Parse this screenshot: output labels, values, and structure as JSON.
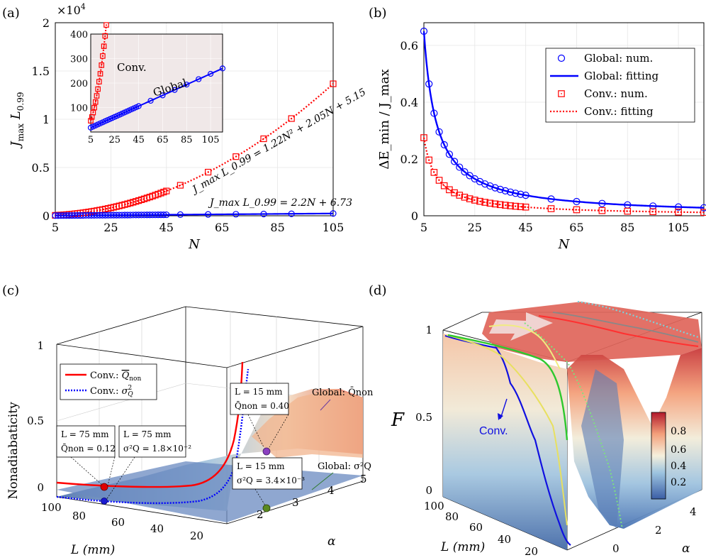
{
  "panels": {
    "a": "(a)",
    "b": "(b)",
    "c": "(c)",
    "d": "(d)"
  },
  "chart_data": [
    {
      "id": "a",
      "type": "scatter",
      "multiplier": "×10",
      "multiplier_exp": "4",
      "xlabel": "N",
      "ylabel_main": "J",
      "ylabel_sub1": "max",
      "ylabel_mid": " L",
      "ylabel_sub2": "0.99",
      "xlim": [
        5,
        105
      ],
      "ylim": [
        0,
        2
      ],
      "xticks": [
        5,
        25,
        45,
        65,
        85,
        105
      ],
      "yticks": [
        0,
        0.5,
        1,
        1.5,
        2
      ],
      "series": [
        {
          "name": "Conv.",
          "color": "#ff0000",
          "marker": "square",
          "fit": "1.22N^2+2.05N+5.15",
          "x": [
            5,
            6,
            7,
            8,
            9,
            10,
            11,
            12,
            13,
            14,
            15,
            16,
            17,
            18,
            19,
            20,
            21,
            22,
            23,
            24,
            25,
            26,
            27,
            28,
            29,
            30,
            31,
            32,
            33,
            34,
            35,
            36,
            37,
            38,
            39,
            40,
            41,
            42,
            43,
            44,
            45,
            50,
            60,
            70,
            80,
            90,
            105
          ]
        },
        {
          "name": "Global",
          "color": "#0000ff",
          "marker": "circle",
          "fit": "2.2N+6.73",
          "x": [
            5,
            6,
            7,
            8,
            9,
            10,
            11,
            12,
            13,
            14,
            15,
            16,
            17,
            18,
            19,
            20,
            21,
            22,
            23,
            24,
            25,
            26,
            27,
            28,
            29,
            30,
            31,
            32,
            33,
            34,
            35,
            36,
            37,
            38,
            39,
            40,
            41,
            42,
            43,
            44,
            45,
            50,
            60,
            70,
            80,
            90,
            105
          ]
        }
      ],
      "fit_label_conv": "J_max L_0.99 = 1.22N² + 2.05N + 5.15",
      "fit_label_global": "J_max L_0.99 = 2.2N + 6.73",
      "inset": {
        "xlim": [
          5,
          115
        ],
        "ylim": [
          0,
          400
        ],
        "xticks": [
          5,
          25,
          45,
          65,
          85,
          105
        ],
        "yticks": [
          100,
          200,
          300,
          400
        ],
        "label_conv": "Conv.",
        "label_global": "Global",
        "background": "#f0e8e8",
        "conv_x": [
          5,
          6,
          7,
          8,
          9,
          10,
          11,
          12,
          13,
          14,
          15,
          16,
          17,
          18
        ],
        "global_x": [
          5,
          7,
          9,
          11,
          13,
          15,
          17,
          19,
          21,
          23,
          25,
          27,
          29,
          31,
          33,
          35,
          37,
          39,
          41,
          43,
          45,
          55,
          65,
          75,
          85,
          95,
          105,
          115
        ]
      }
    },
    {
      "id": "b",
      "type": "scatter",
      "xlabel": "N",
      "ylabel": "ΔE_min / J_max",
      "xlim": [
        5,
        115
      ],
      "ylim": [
        0,
        0.68
      ],
      "xticks": [
        5,
        25,
        45,
        65,
        85,
        105
      ],
      "yticks": [
        0,
        0.2,
        0.4,
        0.6
      ],
      "legend": [
        "Global: num.",
        "Global: fitting",
        "Conv.: num.",
        "Conv.: fitting"
      ],
      "series": [
        {
          "name": "Global: num.",
          "color": "#0000ff",
          "marker": "circle",
          "x": [
            5,
            7,
            9,
            11,
            13,
            15,
            17,
            19,
            21,
            23,
            25,
            27,
            29,
            31,
            33,
            35,
            37,
            39,
            41,
            43,
            45,
            55,
            65,
            75,
            85,
            95,
            105,
            115
          ]
        },
        {
          "name": "Conv.: num.",
          "color": "#ff0000",
          "marker": "square",
          "x": [
            5,
            7,
            9,
            11,
            13,
            15,
            17,
            19,
            21,
            23,
            25,
            27,
            29,
            31,
            33,
            35,
            37,
            39,
            41,
            43,
            45,
            55,
            65,
            75,
            85,
            95,
            105,
            115
          ]
        }
      ]
    },
    {
      "id": "c",
      "type": "surface3d",
      "zlabel": "Nonadiabaticity",
      "xlabel": "L (mm)",
      "ylabel": "α",
      "zticks": [
        "0",
        "0.5",
        "1"
      ],
      "xticks": [
        "100",
        "80",
        "60",
        "40",
        "20"
      ],
      "yticks": [
        "2",
        "3",
        "4",
        "5"
      ],
      "legend": [
        "Conv.: Q̄_non",
        "Conv.: σ²_Q"
      ],
      "legend_1_prefix": "Conv.: ",
      "legend_1_sym": "Q",
      "legend_1_sub": "non",
      "legend_2_prefix": "Conv.: ",
      "legend_2_sym": "σ",
      "legend_2_sup": "2",
      "legend_2_sub": "Q",
      "annotations": {
        "box1_l1": "L = 75 mm",
        "box1_l2": "Q̄non = 0.12",
        "box2_l1": "L = 75 mm",
        "box2_l2": "σ²Q = 1.8×10⁻²",
        "box3_l1": "L = 15 mm",
        "box3_l2": "Q̄non = 0.40",
        "box4_l1": "L = 15 mm",
        "box4_l2": "σ²Q = 3.4×10⁻³",
        "global_q": "Global: Q̄non",
        "global_s": "Global: σ²Q"
      },
      "points": {
        "conv_q": 0.12,
        "conv_s": 0.018,
        "global_q": 0.4,
        "global_s": 0.0034
      }
    },
    {
      "id": "d",
      "type": "surface3d",
      "zlabel": "F",
      "xlabel": "L (mm)",
      "ylabel": "α",
      "zticks": [
        "0",
        "0.5",
        "1"
      ],
      "xticks": [
        "100",
        "80",
        "60",
        "40",
        "20"
      ],
      "yticks": [
        "0",
        "2",
        "4"
      ],
      "colorbar_ticks": [
        "0.8",
        "0.6",
        "0.4",
        "0.2"
      ],
      "label_conv": "Conv."
    }
  ]
}
